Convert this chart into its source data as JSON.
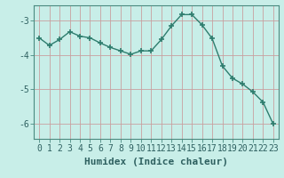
{
  "x": [
    0,
    1,
    2,
    3,
    4,
    5,
    6,
    7,
    8,
    9,
    10,
    11,
    12,
    13,
    14,
    15,
    16,
    17,
    18,
    19,
    20,
    21,
    22,
    23
  ],
  "y": [
    -3.5,
    -3.72,
    -3.55,
    -3.32,
    -3.45,
    -3.5,
    -3.65,
    -3.78,
    -3.88,
    -3.98,
    -3.88,
    -3.88,
    -3.55,
    -3.15,
    -2.82,
    -2.82,
    -3.12,
    -3.52,
    -4.32,
    -4.68,
    -4.85,
    -5.08,
    -5.38,
    -6.02
  ],
  "line_color": "#2e7d6e",
  "marker": "+",
  "marker_size": 4,
  "marker_linewidth": 1.2,
  "bg_color": "#c8eee8",
  "grid_color": "#c8a0a0",
  "xlabel": "Humidex (Indice chaleur)",
  "xlabel_fontsize": 8,
  "yticks": [
    -6,
    -5,
    -4,
    -3
  ],
  "xticks": [
    0,
    1,
    2,
    3,
    4,
    5,
    6,
    7,
    8,
    9,
    10,
    11,
    12,
    13,
    14,
    15,
    16,
    17,
    18,
    19,
    20,
    21,
    22,
    23
  ],
  "ylim": [
    -6.45,
    -2.55
  ],
  "xlim": [
    -0.5,
    23.5
  ],
  "tick_fontsize": 7,
  "line_width": 1.0
}
